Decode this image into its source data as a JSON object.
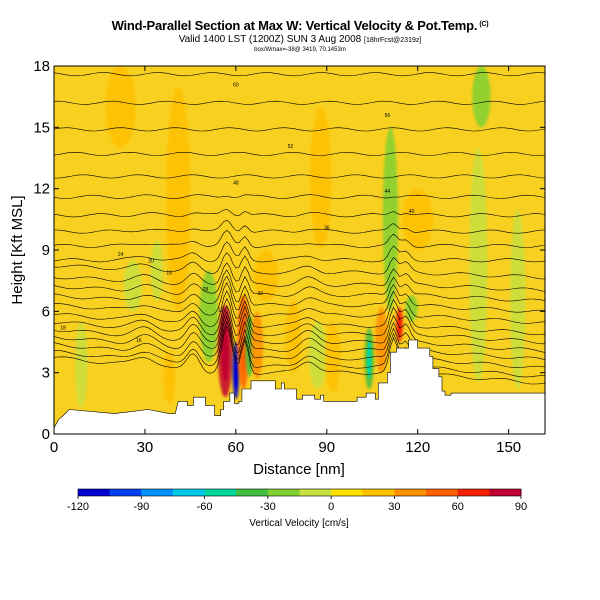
{
  "chart_data": {
    "type": "heatmap",
    "title": "Wind-Parallel Section at Max W: Vertical Velocity & Pot.Temp.",
    "title_mark": "(C)",
    "subtitle_main": "Valid 1400 LST (1200Z) SUN 3 Aug 2008",
    "subtitle_small": "[18hrFcst@2319z]",
    "subtitle_line3": "box/Wmax=-38@ 3419, 70.1453m",
    "xlabel": "Distance [nm]",
    "ylabel": "Height [Kft MSL]",
    "xlim": [
      0,
      162
    ],
    "ylim": [
      0,
      18
    ],
    "xticks": [
      "0",
      "30",
      "60",
      "90",
      "120",
      "150"
    ],
    "yticks": [
      "0",
      "3",
      "6",
      "9",
      "12",
      "15",
      "18"
    ],
    "colorbar": {
      "label": "Vertical Velocity [cm/s]",
      "range": [
        -120,
        90
      ],
      "ticks": [
        "-120",
        "-90",
        "-60",
        "-30",
        "0",
        "30",
        "60",
        "90"
      ],
      "colors": [
        "#0000d0",
        "#0040f0",
        "#0090ff",
        "#00c8e8",
        "#00d8a0",
        "#40c040",
        "#80d030",
        "#c8e040",
        "#ffe000",
        "#ffc000",
        "#ff9000",
        "#ff6000",
        "#f02000",
        "#c00030"
      ]
    },
    "background_color": "#f8d020",
    "terrain_color": "#ffffff",
    "terrain_profile": [
      [
        0,
        0.3
      ],
      [
        1.5,
        0.3
      ],
      [
        1.5,
        0.7
      ],
      [
        3,
        0.7
      ],
      [
        3,
        0.9
      ],
      [
        5,
        0.9
      ],
      [
        5,
        1.2
      ],
      [
        20,
        1.2
      ],
      [
        20,
        1.0
      ],
      [
        42,
        1.0
      ],
      [
        42,
        1.0
      ],
      [
        41,
        1.0
      ],
      [
        41,
        1.1
      ],
      [
        38,
        1.1
      ],
      [
        38,
        1.1
      ],
      [
        40,
        1.1
      ],
      [
        40,
        1.0
      ],
      [
        40,
        1.0
      ],
      [
        40,
        1.0
      ],
      [
        41,
        1.0
      ],
      [
        41,
        0.9
      ],
      [
        41.5,
        0.9
      ],
      [
        41.5,
        0.8
      ],
      [
        41.5,
        0.8
      ],
      [
        40.5,
        0.8
      ],
      [
        40.5,
        0.7
      ],
      [
        41,
        0.7
      ],
      [
        41,
        0.6
      ],
      [
        40,
        0.6
      ],
      [
        40,
        0.6
      ],
      [
        41,
        0.6
      ],
      [
        41,
        0.6
      ]
    ],
    "terrain_steps": [
      [
        0,
        0.3
      ],
      [
        1.5,
        0.7
      ],
      [
        3,
        0.9
      ],
      [
        5,
        1.2
      ],
      [
        20,
        1.0
      ],
      [
        31,
        1.2
      ],
      [
        38,
        1.0
      ],
      [
        40,
        1.0
      ],
      [
        41,
        1.6
      ],
      [
        44,
        1.6
      ],
      [
        44,
        1.4
      ],
      [
        46,
        1.4
      ],
      [
        46,
        1.8
      ],
      [
        50,
        1.8
      ],
      [
        50,
        1.4
      ],
      [
        53,
        1.4
      ],
      [
        53,
        0.9
      ],
      [
        55,
        0.9
      ],
      [
        55,
        1.2
      ],
      [
        56,
        1.2
      ],
      [
        56,
        1.6
      ],
      [
        58,
        1.6
      ],
      [
        58,
        2.0
      ],
      [
        59.5,
        2.0
      ],
      [
        59.5,
        1.5
      ],
      [
        61,
        1.5
      ],
      [
        61,
        1.6
      ],
      [
        62,
        1.6
      ],
      [
        62,
        2.2
      ],
      [
        65,
        2.2
      ],
      [
        65,
        2.6
      ],
      [
        73,
        2.6
      ],
      [
        73,
        2.2
      ],
      [
        75,
        2.2
      ],
      [
        75,
        2.5
      ],
      [
        76,
        2.5
      ],
      [
        76,
        2.2
      ],
      [
        80,
        2.2
      ],
      [
        80,
        1.7
      ],
      [
        82,
        1.7
      ],
      [
        82,
        1.9
      ],
      [
        86,
        1.9
      ],
      [
        86,
        1.7
      ],
      [
        88,
        1.7
      ],
      [
        88,
        1.9
      ],
      [
        89,
        1.9
      ],
      [
        89,
        1.6
      ],
      [
        100,
        1.6
      ],
      [
        100,
        1.8
      ],
      [
        103,
        1.8
      ],
      [
        103,
        2.0
      ],
      [
        106,
        2.0
      ],
      [
        106,
        1.7
      ],
      [
        107,
        1.7
      ],
      [
        107,
        2.5
      ],
      [
        110,
        2.5
      ],
      [
        110,
        3.0
      ],
      [
        111,
        3.0
      ],
      [
        111,
        4.0
      ],
      [
        113,
        4.0
      ],
      [
        113,
        4.2
      ],
      [
        117,
        4.2
      ],
      [
        117,
        4.6
      ],
      [
        120,
        4.6
      ],
      [
        120,
        4.2
      ],
      [
        124,
        4.2
      ],
      [
        124,
        3.8
      ],
      [
        125,
        3.8
      ],
      [
        125,
        3.2
      ],
      [
        127,
        3.2
      ],
      [
        127,
        2.8
      ],
      [
        128,
        2.8
      ],
      [
        128,
        2.1
      ],
      [
        129,
        2.1
      ],
      [
        129,
        1.9
      ],
      [
        131,
        1.9
      ],
      [
        131,
        2.0
      ],
      [
        162,
        2.0
      ]
    ],
    "isentropes_h": [
      [
        3.0,
        3.3,
        3.7,
        4.1,
        4.5,
        4.9,
        5.4,
        5.9,
        6.4,
        6.9,
        7.5
      ],
      [
        7.1,
        7.5,
        8.0,
        8.5,
        9.0,
        9.6,
        10.2,
        10.9,
        11.7,
        12.6,
        13.6,
        14.7,
        16.0,
        17.4
      ]
    ],
    "contour_labels": [
      "18",
      "16",
      "12",
      "16",
      "20",
      "24",
      "28",
      "32",
      "36",
      "40",
      "44",
      "48",
      "52",
      "56",
      "60"
    ],
    "features": [
      {
        "x": 56.5,
        "bot": 1.8,
        "top": 6.3,
        "width": 2.4,
        "w": 90
      },
      {
        "x": 60,
        "bot": 1.7,
        "top": 4.5,
        "width": 1.2,
        "w": -110
      },
      {
        "x": 62.5,
        "bot": 2.2,
        "top": 6.8,
        "width": 2.0,
        "w": 50
      },
      {
        "x": 64.5,
        "bot": 2.8,
        "top": 5.8,
        "width": 1.4,
        "w": -35
      },
      {
        "x": 51,
        "bot": 3.5,
        "top": 8.0,
        "width": 3.0,
        "w": -20
      },
      {
        "x": 41,
        "bot": 6.0,
        "top": 17.0,
        "width": 4.0,
        "w": 22
      },
      {
        "x": 9,
        "bot": 1.3,
        "top": 5.5,
        "width": 2.0,
        "w": -15
      },
      {
        "x": 34,
        "bot": 6.5,
        "top": 9.5,
        "width": 2.0,
        "w": -12
      },
      {
        "x": 38,
        "bot": 1.5,
        "top": 4.0,
        "width": 2.0,
        "w": 22
      },
      {
        "x": 67,
        "bot": 2.7,
        "top": 6.0,
        "width": 2.0,
        "w": 30
      },
      {
        "x": 70,
        "bot": 6.5,
        "top": 9.0,
        "width": 4.0,
        "w": 22
      },
      {
        "x": 79,
        "bot": 3.0,
        "top": 6.5,
        "width": 2.5,
        "w": 28
      },
      {
        "x": 87,
        "bot": 2.2,
        "top": 5.5,
        "width": 3.0,
        "w": -15
      },
      {
        "x": 92,
        "bot": 2.0,
        "top": 5.5,
        "width": 2.5,
        "w": 25
      },
      {
        "x": 104,
        "bot": 2.2,
        "top": 5.2,
        "width": 1.6,
        "w": -45
      },
      {
        "x": 108,
        "bot": 3.0,
        "top": 6.2,
        "width": 2.0,
        "w": 30
      },
      {
        "x": 111,
        "bot": 6.0,
        "top": 15.0,
        "width": 2.5,
        "w": -20
      },
      {
        "x": 114,
        "bot": 4.5,
        "top": 6.2,
        "width": 1.2,
        "w": 60
      },
      {
        "x": 118,
        "bot": 5.5,
        "top": 6.8,
        "width": 2.0,
        "w": -18
      },
      {
        "x": 140,
        "bot": 2.5,
        "top": 14.0,
        "width": 3.0,
        "w": -15
      },
      {
        "x": 141,
        "bot": 15.0,
        "top": 18.0,
        "width": 3.0,
        "w": -18
      },
      {
        "x": 153,
        "bot": 2.2,
        "top": 11.0,
        "width": 2.5,
        "w": -10
      },
      {
        "x": 88,
        "bot": 9.0,
        "top": 16.0,
        "width": 3.5,
        "w": 22
      },
      {
        "x": 120,
        "bot": 9.0,
        "top": 12.0,
        "width": 5.0,
        "w": 20
      },
      {
        "x": 22,
        "bot": 14.0,
        "top": 18.0,
        "width": 5.0,
        "w": 20
      },
      {
        "x": 26,
        "bot": 6.0,
        "top": 8.5,
        "width": 3.0,
        "w": -8
      }
    ]
  }
}
